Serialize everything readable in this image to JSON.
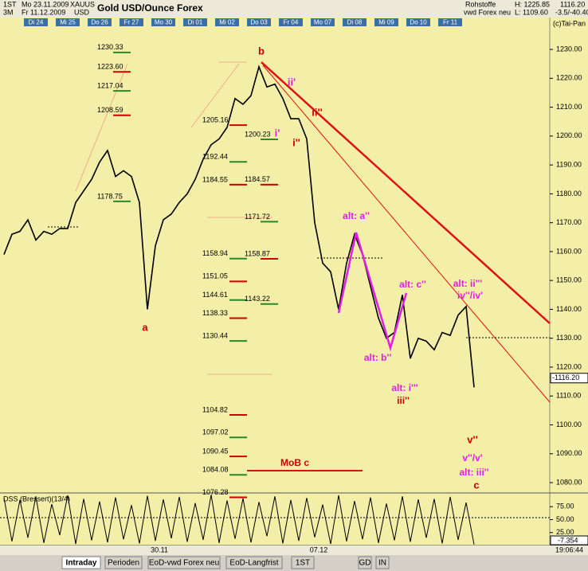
{
  "header": {
    "symbol_period": "1ST",
    "start": "Mo 23.11.2009",
    "ticker": "XAUUS",
    "range": "3M",
    "end": "Fr 11.12.2009",
    "currency": "USD",
    "group": "Rohstoffe",
    "source": "vwd Forex neu",
    "high": "H: 1225.85",
    "low": "L: 1109.60",
    "price": "1116.20",
    "change": "-3.5/-40.40",
    "copyright": "(c)Tai-Pan"
  },
  "tabs": [
    "Intraday",
    "Perioden",
    "EoD-vwd Forex neu",
    "EoD-Langfrist",
    "1ST",
    "GD",
    "IN"
  ],
  "time": "19:06:44",
  "chart_data": {
    "type": "line",
    "title": "Gold USD/Ounce Forex",
    "categories": [
      null,
      null,
      null,
      null,
      "Di 24",
      null,
      null,
      null,
      "Mi 25",
      null,
      null,
      null,
      "Do 26",
      null,
      null,
      null,
      "Fr 27",
      null,
      null,
      null,
      "Mo 30",
      null,
      null,
      null,
      "Di 01",
      null,
      null,
      null,
      "Mi 02",
      null,
      null,
      null,
      "Do 03",
      null,
      null,
      null,
      "Fr 04",
      null,
      null,
      null,
      "Mo 07",
      null,
      null,
      null,
      "Di 08",
      null,
      null,
      null,
      "Mi 09",
      null,
      null,
      null,
      "Do 10",
      null,
      null,
      null,
      "Fr 11",
      null,
      null,
      null
    ],
    "bottom_labels": [
      "30.11",
      "07.12"
    ],
    "values": [
      1159,
      1166,
      1167,
      1171,
      1164,
      1167,
      1166,
      1168,
      1168,
      1177,
      1181,
      1185,
      1191,
      1195,
      1186,
      1188,
      1186,
      1177,
      1140,
      1162,
      1171,
      1173,
      1177,
      1180,
      1185,
      1192,
      1197,
      1199,
      1203,
      1213,
      1211,
      1214,
      1224,
      1217,
      1218,
      1213,
      1206,
      1206,
      1199,
      1170,
      1156,
      1153,
      1140,
      1156,
      1166,
      1159,
      1148,
      1137,
      1130,
      1132,
      1145,
      1123,
      1130,
      1129,
      1126,
      1132,
      1131,
      1138,
      1141,
      1113
    ],
    "color": "#000000",
    "ylim": [
      1076.7,
      1241.6
    ],
    "yticks": [
      {
        "value": 1080,
        "label": "1080.00"
      },
      {
        "value": 1090,
        "label": "1090.00"
      },
      {
        "value": 1100,
        "label": "1100.00"
      },
      {
        "value": 1110,
        "label": "1110.00"
      },
      {
        "value": 1120,
        "label": "1120.00"
      },
      {
        "value": 1130,
        "label": "1130.00"
      },
      {
        "value": 1140,
        "label": "1140.00"
      },
      {
        "value": 1150,
        "label": "1150.00"
      },
      {
        "value": 1160,
        "label": "1160.00"
      },
      {
        "value": 1170,
        "label": "1170.00"
      },
      {
        "value": 1180,
        "label": "1180.00"
      },
      {
        "value": 1190,
        "label": "1190.00"
      },
      {
        "value": 1200,
        "label": "1200.00"
      },
      {
        "value": 1210,
        "label": "1210.00"
      },
      {
        "value": 1220,
        "label": "1220.00"
      },
      {
        "value": 1230,
        "label": "1230.00"
      }
    ],
    "last_price": {
      "value": 1116.2,
      "label": "-1116.20"
    },
    "levels": [
      [
        1230.33,
        {
          "value": 1223.6,
          "label": "1223.60"
        },
        1217.04,
        1208.59,
        1178.75
      ],
      [
        1205.16,
        1192.44,
        1184.55,
        1158.94,
        1151.05,
        1144.61,
        1138.33,
        1130.44,
        1104.82,
        1097.02,
        1090.45,
        1084.08,
        1076.28
      ],
      [
        1200.23,
        1184.57,
        1171.72,
        1158.87,
        1143.22
      ]
    ],
    "annotations": [
      {
        "text": "a",
        "color": "#cc0000"
      },
      {
        "text": "b",
        "color": "#cc0000"
      },
      {
        "text": "ii'",
        "color": "#e020e0"
      },
      {
        "text": "i'",
        "color": "#e020e0"
      },
      {
        "text": "ii''",
        "color": "#cc0000"
      },
      {
        "text": "i''",
        "color": "#cc0000"
      },
      {
        "text": "alt: a''",
        "color": "#e020e0"
      },
      {
        "text": "alt: c''",
        "color": "#e020e0"
      },
      {
        "text": "alt: b''",
        "color": "#e020e0"
      },
      {
        "text": "alt: ii'''",
        "color": "#e020e0"
      },
      {
        "text": "iv''/iv'",
        "color": "#e020e0"
      },
      {
        "text": "alt: i'''",
        "color": "#e020e0"
      },
      {
        "text": "iii''",
        "color": "#cc0000"
      },
      {
        "text": "v''",
        "color": "#cc0000"
      },
      {
        "text": "v''/v'",
        "color": "#e020e0"
      },
      {
        "text": "alt: iii''",
        "color": "#e020e0"
      },
      {
        "text": "c",
        "color": "#cc0000"
      },
      {
        "text": "MoB c",
        "color": "#cc0000"
      }
    ],
    "indicator": {
      "name": "DSS (Bressert)(13/4)",
      "ylim": [
        0,
        100
      ],
      "yticks": [
        {
          "value": 75,
          "label": "75.00"
        },
        {
          "value": 50,
          "label": "50.00"
        },
        {
          "value": 25,
          "label": "25.00"
        }
      ],
      "last": "-7.354",
      "values": [
        92,
        8,
        88,
        15,
        95,
        5,
        80,
        20,
        97,
        3,
        90,
        10,
        85,
        6,
        93,
        12,
        78,
        4,
        96,
        9,
        89,
        14,
        94,
        7,
        82,
        11,
        98,
        5,
        87,
        13,
        91,
        6,
        84,
        18,
        95,
        4,
        88,
        9,
        92,
        16,
        79,
        3,
        97,
        8,
        86,
        12,
        93,
        5,
        81,
        10,
        95,
        7,
        89,
        15,
        90,
        4,
        94,
        11,
        83,
        2
      ]
    }
  }
}
